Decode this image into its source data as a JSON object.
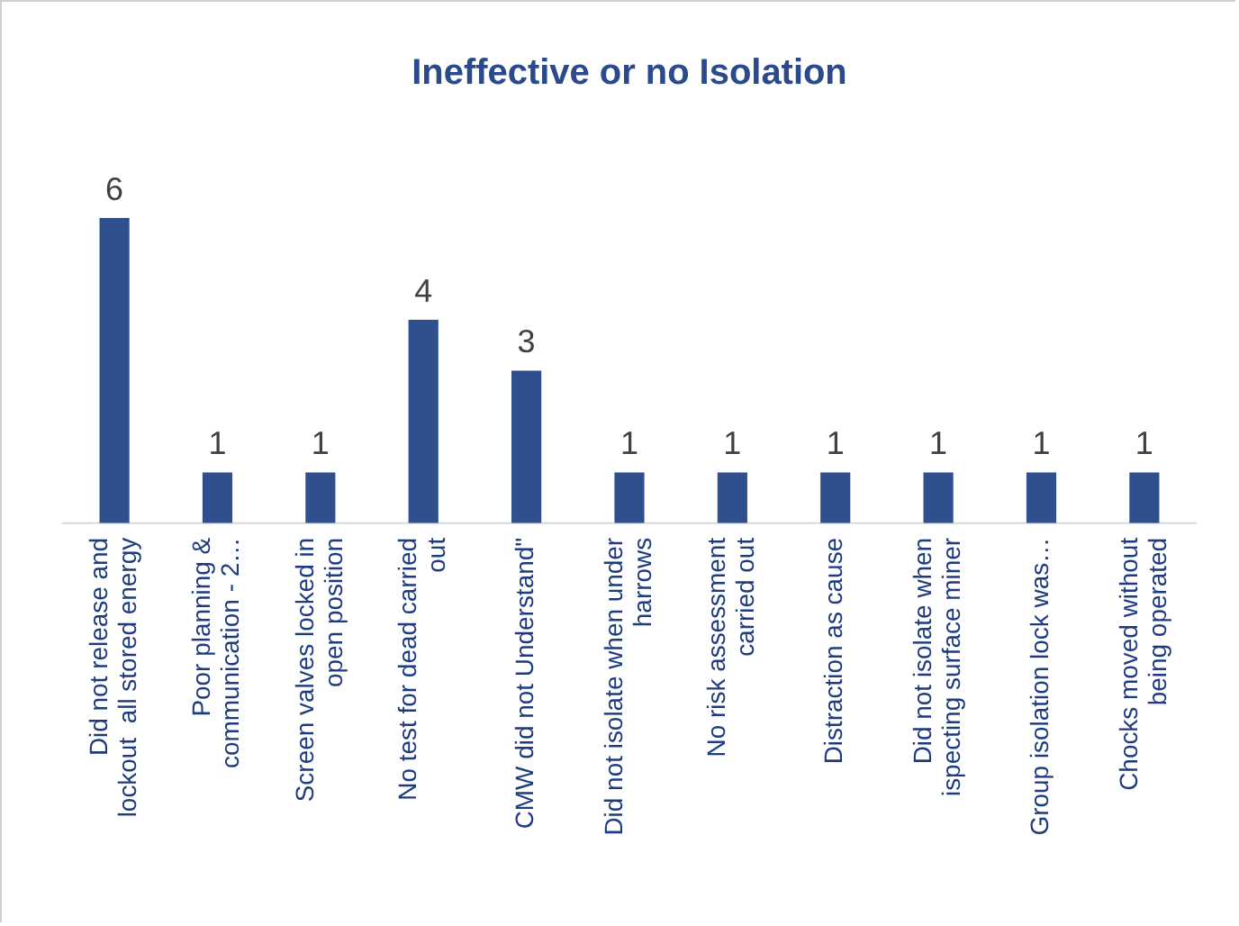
{
  "chart_data": {
    "type": "bar",
    "title": "Ineffective or no Isolation",
    "categories": [
      "Did not release and\nlockout  all stored energy",
      "Poor planning &\ncommunication - 2…",
      "Screen valves locked in\nopen position",
      "No test for dead carried\nout",
      "CMW did not Understand\"",
      "Did not isolate when under\nharrows",
      "No risk assessment\ncarried out",
      "Distraction as cause",
      "Did not isolate when\nispecting surface miner",
      "Group isolation lock was…",
      "Chocks moved without\nbeing operated"
    ],
    "values": [
      6,
      1,
      1,
      4,
      3,
      1,
      1,
      1,
      1,
      1,
      1
    ],
    "color": "#2f4f8f",
    "data_labels": true,
    "grid": false,
    "legend": false
  }
}
